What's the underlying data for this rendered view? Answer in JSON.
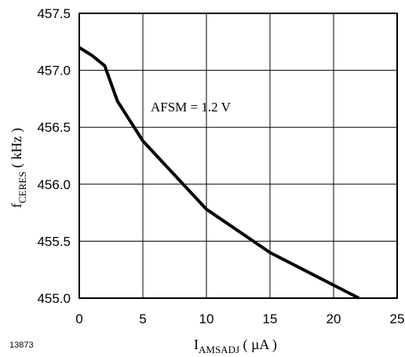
{
  "chart_data": {
    "type": "line",
    "xlabel": {
      "main": "I",
      "sub": "AMSADJ",
      "unit": " ( µA )"
    },
    "ylabel": {
      "main": "f",
      "sub": "CERES",
      "unit": " ( kHz )"
    },
    "xlim": [
      0,
      25
    ],
    "ylim": [
      455.0,
      457.5
    ],
    "x_ticks": [
      "0",
      "5",
      "10",
      "15",
      "20",
      "25"
    ],
    "y_ticks": [
      "455.0",
      "455.5",
      "456.0",
      "456.5",
      "457.0",
      "457.5"
    ],
    "grid": true,
    "annotation": "AFSM = 1.2 V",
    "figure_id": "13873",
    "series": [
      {
        "x": [
          0,
          1,
          2,
          3,
          5,
          10,
          15,
          22
        ],
        "y": [
          457.2,
          457.13,
          457.04,
          456.73,
          456.38,
          455.78,
          455.4,
          455.0
        ],
        "color": "#000000"
      }
    ]
  }
}
